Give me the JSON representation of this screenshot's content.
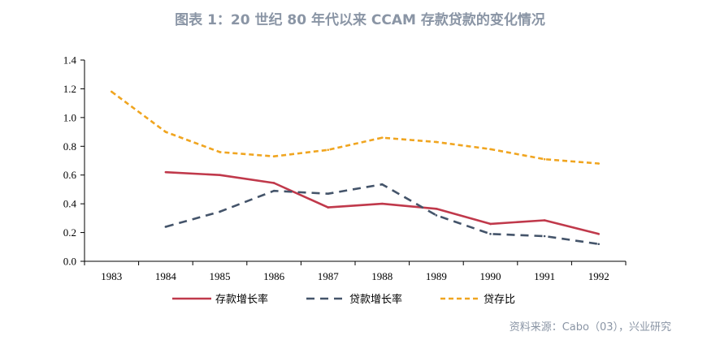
{
  "title": "图表 1：20 世纪 80 年代以来 CCAM 存款贷款的变化情况",
  "source": "资料来源：Cabo（03），兴业研究",
  "chart_data": {
    "type": "line",
    "title": "图表 1：20 世纪 80 年代以来 CCAM 存款贷款的变化情况",
    "categories": [
      "1983",
      "1984",
      "1985",
      "1986",
      "1987",
      "1988",
      "1989",
      "1990",
      "1991",
      "1992"
    ],
    "ylim": [
      0,
      1.4
    ],
    "yticks": [
      "0.0",
      "0.2",
      "0.4",
      "0.6",
      "0.8",
      "1.0",
      "1.2",
      "1.4"
    ],
    "grid": false,
    "legend_position": "bottom",
    "series": [
      {
        "name": "存款增长率",
        "color": "#c0394b",
        "dash": "solid",
        "values": [
          null,
          0.62,
          0.6,
          0.545,
          0.375,
          0.4,
          0.365,
          0.26,
          0.285,
          0.19
        ]
      },
      {
        "name": "贷款增长率",
        "color": "#44546a",
        "dash": "dashed",
        "values": [
          null,
          0.24,
          0.345,
          0.49,
          0.47,
          0.535,
          0.32,
          0.19,
          0.175,
          0.12
        ]
      },
      {
        "name": "贷存比",
        "color": "#f0a520",
        "dash": "dotted",
        "values": [
          1.18,
          0.9,
          0.76,
          0.73,
          0.775,
          0.86,
          0.83,
          0.78,
          0.71,
          0.68
        ]
      }
    ]
  }
}
